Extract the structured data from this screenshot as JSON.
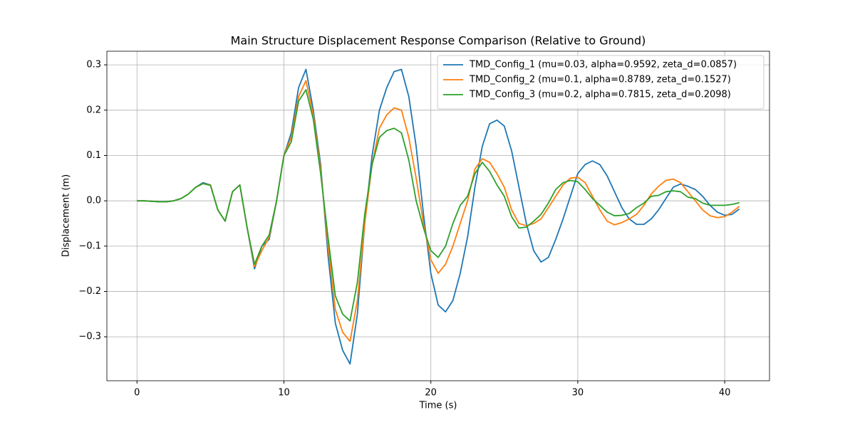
{
  "chart_data": {
    "type": "line",
    "title": "Main Structure Displacement Response Comparison (Relative to Ground)",
    "x_label": "Time (s)",
    "y_label": "Displacement (m)",
    "x": [
      0,
      0.5,
      1,
      1.5,
      2,
      2.5,
      3,
      3.5,
      4,
      4.5,
      5,
      5.5,
      6,
      6.5,
      7,
      7.5,
      8,
      8.5,
      9,
      9.5,
      10,
      10.5,
      11,
      11.5,
      12,
      12.5,
      13,
      13.5,
      14,
      14.5,
      15,
      15.5,
      16,
      16.5,
      17,
      17.5,
      18,
      18.5,
      19,
      19.5,
      20,
      20.5,
      21,
      21.5,
      22,
      22.5,
      23,
      23.5,
      24,
      24.5,
      25,
      25.5,
      26,
      26.5,
      27,
      27.5,
      28,
      28.5,
      29,
      29.5,
      30,
      30.5,
      31,
      31.5,
      32,
      32.5,
      33,
      33.5,
      34,
      34.5,
      35,
      35.5,
      36,
      36.5,
      37,
      37.5,
      38,
      38.5,
      39,
      39.5,
      40,
      40.5,
      41
    ],
    "series": [
      {
        "name": "TMD_Config_1 (mu=0.03, alpha=0.9592, zeta_d=0.0857)",
        "color": "#1f77b4",
        "values": [
          0,
          0,
          -0.001,
          -0.002,
          -0.002,
          0,
          0.005,
          0.015,
          0.03,
          0.04,
          0.035,
          -0.02,
          -0.045,
          0.02,
          0.035,
          -0.06,
          -0.15,
          -0.1,
          -0.085,
          0,
          0.1,
          0.15,
          0.25,
          0.29,
          0.2,
          0.08,
          -0.12,
          -0.27,
          -0.33,
          -0.36,
          -0.25,
          -0.05,
          0.1,
          0.2,
          0.25,
          0.285,
          0.29,
          0.23,
          0.12,
          -0.03,
          -0.16,
          -0.23,
          -0.245,
          -0.22,
          -0.16,
          -0.08,
          0.03,
          0.12,
          0.17,
          0.178,
          0.165,
          0.11,
          0.03,
          -0.05,
          -0.11,
          -0.135,
          -0.125,
          -0.085,
          -0.04,
          0.01,
          0.06,
          0.08,
          0.088,
          0.08,
          0.055,
          0.02,
          -0.015,
          -0.04,
          -0.052,
          -0.052,
          -0.04,
          -0.02,
          0.005,
          0.03,
          0.037,
          0.032,
          0.025,
          0.01,
          -0.01,
          -0.025,
          -0.032,
          -0.03,
          -0.018
        ]
      },
      {
        "name": "TMD_Config_2 (mu=0.1, alpha=0.8789, zeta_d=0.1527)",
        "color": "#ff7f0e",
        "values": [
          0,
          0,
          -0.001,
          -0.002,
          -0.002,
          0,
          0.005,
          0.015,
          0.03,
          0.038,
          0.035,
          -0.02,
          -0.045,
          0.02,
          0.035,
          -0.06,
          -0.145,
          -0.11,
          -0.08,
          0,
          0.1,
          0.14,
          0.23,
          0.265,
          0.19,
          0.07,
          -0.1,
          -0.24,
          -0.29,
          -0.31,
          -0.22,
          -0.05,
          0.08,
          0.16,
          0.19,
          0.205,
          0.2,
          0.14,
          0.05,
          -0.05,
          -0.13,
          -0.16,
          -0.14,
          -0.1,
          -0.05,
          0,
          0.07,
          0.093,
          0.085,
          0.06,
          0.03,
          -0.02,
          -0.05,
          -0.055,
          -0.05,
          -0.04,
          -0.015,
          0.01,
          0.035,
          0.05,
          0.052,
          0.04,
          0.01,
          -0.02,
          -0.045,
          -0.053,
          -0.048,
          -0.04,
          -0.03,
          -0.01,
          0.015,
          0.032,
          0.045,
          0.048,
          0.04,
          0.02,
          0,
          -0.02,
          -0.033,
          -0.037,
          -0.035,
          -0.025,
          -0.012
        ]
      },
      {
        "name": "TMD_Config_3 (mu=0.2, alpha=0.7815, zeta_d=0.2098)",
        "color": "#2ca02c",
        "values": [
          0,
          0,
          -0.001,
          -0.002,
          -0.002,
          0,
          0.005,
          0.015,
          0.03,
          0.038,
          0.034,
          -0.02,
          -0.045,
          0.02,
          0.035,
          -0.06,
          -0.14,
          -0.1,
          -0.075,
          0,
          0.1,
          0.13,
          0.22,
          0.245,
          0.18,
          0.06,
          -0.08,
          -0.21,
          -0.25,
          -0.265,
          -0.18,
          -0.03,
          0.08,
          0.14,
          0.155,
          0.16,
          0.15,
          0.09,
          0,
          -0.06,
          -0.11,
          -0.125,
          -0.1,
          -0.05,
          -0.01,
          0.01,
          0.06,
          0.085,
          0.065,
          0.035,
          0.01,
          -0.035,
          -0.06,
          -0.058,
          -0.045,
          -0.03,
          -0.005,
          0.025,
          0.04,
          0.045,
          0.042,
          0.025,
          0.005,
          -0.01,
          -0.025,
          -0.033,
          -0.032,
          -0.028,
          -0.015,
          -0.005,
          0.01,
          0.012,
          0.02,
          0.022,
          0.02,
          0.008,
          0.005,
          -0.005,
          -0.01,
          -0.01,
          -0.01,
          -0.008,
          -0.004
        ]
      }
    ],
    "xlim": [
      -2.05,
      43.05
    ],
    "ylim": [
      -0.397,
      0.33
    ],
    "xticks": [
      0,
      10,
      20,
      30,
      40
    ],
    "yticks": [
      {
        "value": -0.3,
        "label": "−0.3"
      },
      {
        "value": -0.2,
        "label": "−0.2"
      },
      {
        "value": -0.1,
        "label": "−0.1"
      },
      {
        "value": 0,
        "label": "0.0"
      },
      0.1,
      0.2,
      0.3
    ],
    "grid": true,
    "legend": "upper right"
  }
}
